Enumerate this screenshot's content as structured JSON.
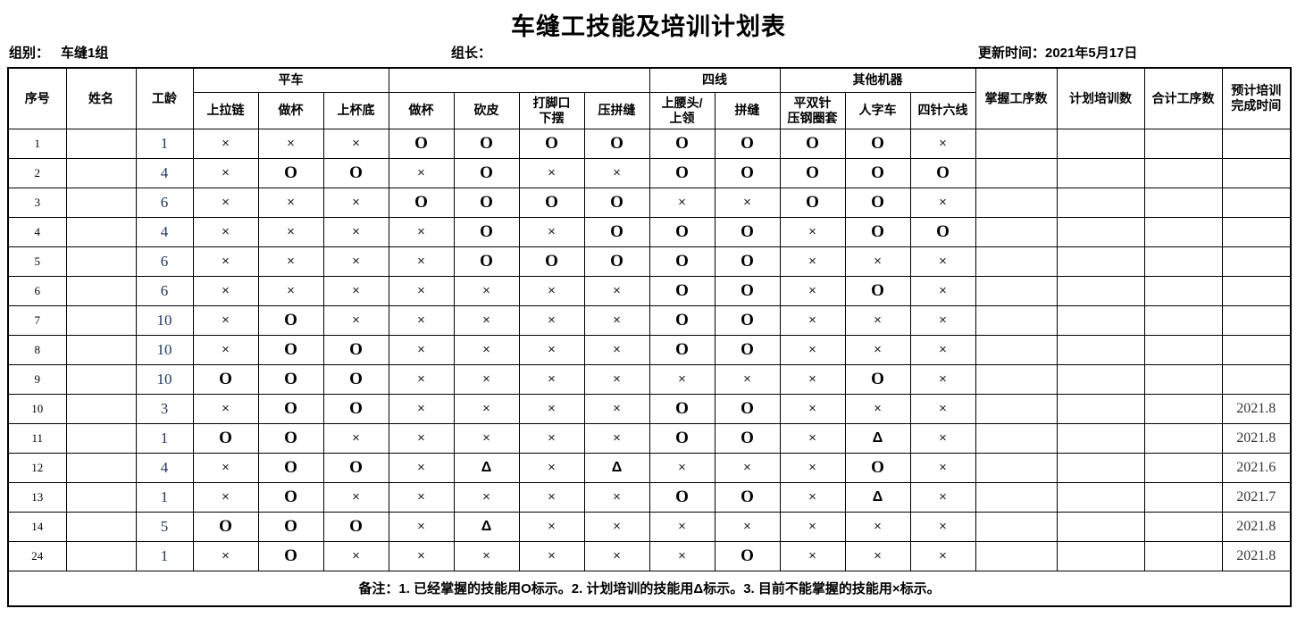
{
  "title": "车缝工技能及培训计划表",
  "info": {
    "group_label": "组别：",
    "group_value": "车缝1组",
    "leader_label": "组长：",
    "updated_label": "更新时间：2021年5月17日"
  },
  "legend": {
    "mastered_mark": "O",
    "planned_mark": "Δ",
    "cannot_mark": "×"
  },
  "accent_colors": {
    "grid": "#000000",
    "years_text": "#1F3864",
    "date_text": "#333333"
  },
  "table": {
    "header": {
      "no": "序号",
      "name": "姓名",
      "years": "工龄",
      "groups": [
        {
          "label": "平车",
          "span": 3
        },
        {
          "label": "",
          "span": 4
        },
        {
          "label": "四线",
          "span": 2
        },
        {
          "label": "其他机器",
          "span": 3
        }
      ],
      "skills": [
        "上拉链",
        "做杯",
        "上杯底",
        "做杯",
        "砍皮",
        "打脚口\n下摆",
        "压拼缝",
        "上腰头/\n上领",
        "拼缝",
        "平双针\n压钢圈套",
        "人字车",
        "四针六线"
      ],
      "mastered": "掌握工序数",
      "planned": "计划培训数",
      "total": "合计工序数",
      "expected": "预计培训\n完成时间"
    },
    "rows": [
      {
        "no": "1",
        "name": "",
        "years": "1",
        "marks": [
          "×",
          "×",
          "×",
          "O",
          "O",
          "O",
          "O",
          "O",
          "O",
          "O",
          "O",
          "×"
        ],
        "mastered": "",
        "planned": "",
        "total": "",
        "expected": ""
      },
      {
        "no": "2",
        "name": "",
        "years": "4",
        "marks": [
          "×",
          "O",
          "O",
          "×",
          "O",
          "×",
          "×",
          "O",
          "O",
          "O",
          "O",
          "O"
        ],
        "mastered": "",
        "planned": "",
        "total": "",
        "expected": ""
      },
      {
        "no": "3",
        "name": "",
        "years": "6",
        "marks": [
          "×",
          "×",
          "×",
          "O",
          "O",
          "O",
          "O",
          "×",
          "×",
          "O",
          "O",
          "×"
        ],
        "mastered": "",
        "planned": "",
        "total": "",
        "expected": ""
      },
      {
        "no": "4",
        "name": "",
        "years": "4",
        "marks": [
          "×",
          "×",
          "×",
          "×",
          "O",
          "×",
          "O",
          "O",
          "O",
          "×",
          "O",
          "O"
        ],
        "mastered": "",
        "planned": "",
        "total": "",
        "expected": ""
      },
      {
        "no": "5",
        "name": "",
        "years": "6",
        "marks": [
          "×",
          "×",
          "×",
          "×",
          "O",
          "O",
          "O",
          "O",
          "O",
          "×",
          "×",
          "×"
        ],
        "mastered": "",
        "planned": "",
        "total": "",
        "expected": ""
      },
      {
        "no": "6",
        "name": "",
        "years": "6",
        "marks": [
          "×",
          "×",
          "×",
          "×",
          "×",
          "×",
          "×",
          "O",
          "O",
          "×",
          "O",
          "×"
        ],
        "mastered": "",
        "planned": "",
        "total": "",
        "expected": ""
      },
      {
        "no": "7",
        "name": "",
        "years": "10",
        "marks": [
          "×",
          "O",
          "×",
          "×",
          "×",
          "×",
          "×",
          "O",
          "O",
          "×",
          "×",
          "×"
        ],
        "mastered": "",
        "planned": "",
        "total": "",
        "expected": ""
      },
      {
        "no": "8",
        "name": "",
        "years": "10",
        "marks": [
          "×",
          "O",
          "O",
          "×",
          "×",
          "×",
          "×",
          "O",
          "O",
          "×",
          "×",
          "×"
        ],
        "mastered": "",
        "planned": "",
        "total": "",
        "expected": ""
      },
      {
        "no": "9",
        "name": "",
        "years": "10",
        "marks": [
          "O",
          "O",
          "O",
          "×",
          "×",
          "×",
          "×",
          "×",
          "×",
          "×",
          "O",
          "×"
        ],
        "mastered": "",
        "planned": "",
        "total": "",
        "expected": ""
      },
      {
        "no": "10",
        "name": "",
        "years": "3",
        "marks": [
          "×",
          "O",
          "O",
          "×",
          "×",
          "×",
          "×",
          "O",
          "O",
          "×",
          "×",
          "×"
        ],
        "mastered": "",
        "planned": "",
        "total": "",
        "expected": "2021.8"
      },
      {
        "no": "11",
        "name": "",
        "years": "1",
        "marks": [
          "O",
          "O",
          "×",
          "×",
          "×",
          "×",
          "×",
          "O",
          "O",
          "×",
          "Δ",
          "×"
        ],
        "mastered": "",
        "planned": "",
        "total": "",
        "expected": "2021.8"
      },
      {
        "no": "12",
        "name": "",
        "years": "4",
        "marks": [
          "×",
          "O",
          "O",
          "×",
          "Δ",
          "×",
          "Δ",
          "×",
          "×",
          "×",
          "O",
          "×"
        ],
        "mastered": "",
        "planned": "",
        "total": "",
        "expected": "2021.6"
      },
      {
        "no": "13",
        "name": "",
        "years": "1",
        "marks": [
          "×",
          "O",
          "×",
          "×",
          "×",
          "×",
          "×",
          "O",
          "O",
          "×",
          "Δ",
          "×"
        ],
        "mastered": "",
        "planned": "",
        "total": "",
        "expected": "2021.7"
      },
      {
        "no": "14",
        "name": "",
        "years": "5",
        "marks": [
          "O",
          "O",
          "O",
          "×",
          "Δ",
          "×",
          "×",
          "×",
          "×",
          "×",
          "×",
          "×"
        ],
        "mastered": "",
        "planned": "",
        "total": "",
        "expected": "2021.8"
      },
      {
        "no": "24",
        "name": "",
        "years": "1",
        "marks": [
          "×",
          "O",
          "×",
          "×",
          "×",
          "×",
          "×",
          "×",
          "O",
          "×",
          "×",
          "×"
        ],
        "mastered": "",
        "planned": "",
        "total": "",
        "expected": "2021.8"
      }
    ],
    "note": "备注：1. 已经掌握的技能用O标示。2. 计划培训的技能用Δ标示。3. 目前不能掌握的技能用×标示。"
  }
}
